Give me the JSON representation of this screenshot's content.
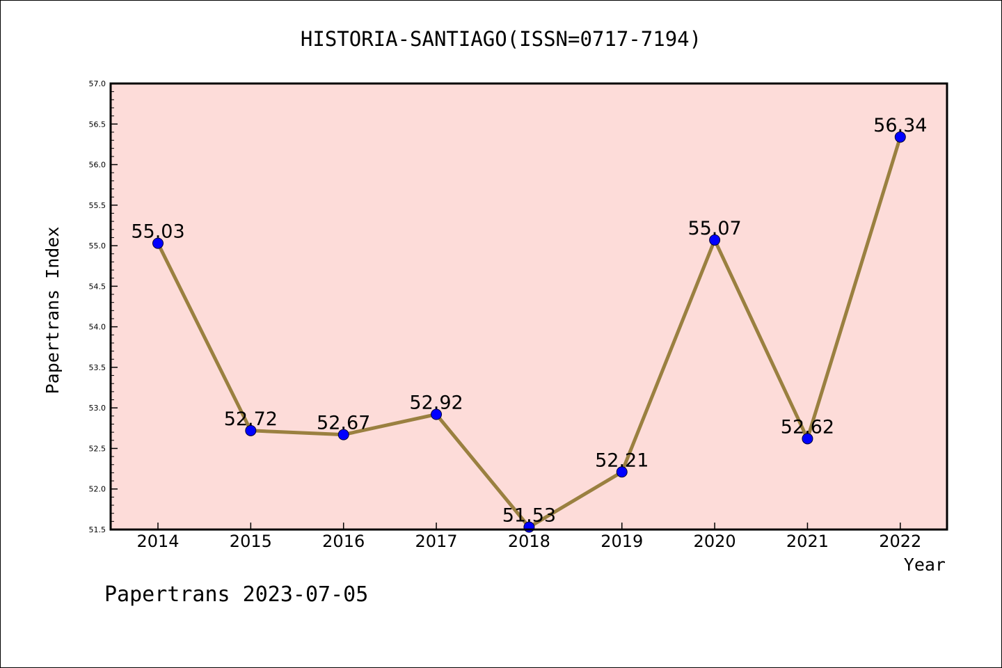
{
  "chart_data": {
    "type": "line",
    "title": "HISTORIA-SANTIAGO(ISSN=0717-7194)",
    "xlabel": "Year",
    "ylabel": "Papertrans Index",
    "footer": "Papertrans 2023-07-05",
    "x": [
      "2014",
      "2015",
      "2016",
      "2017",
      "2018",
      "2019",
      "2020",
      "2021",
      "2022"
    ],
    "values": [
      55.03,
      52.72,
      52.67,
      52.92,
      51.53,
      52.21,
      55.07,
      52.62,
      56.34
    ],
    "value_labels": [
      "55.03",
      "52.72",
      "52.67",
      "52.92",
      "51.53",
      "52.21",
      "55.07",
      "52.62",
      "56.34"
    ],
    "ylim": [
      51.5,
      57.0
    ],
    "yticks": [
      "51.5",
      "52.0",
      "52.5",
      "53.0",
      "53.5",
      "54.0",
      "54.5",
      "55.0",
      "55.5",
      "56.0",
      "56.5",
      "57.0"
    ],
    "grid": false,
    "legend": "none",
    "colors": {
      "plot_background": "#fddcd9",
      "line": "#9a8040",
      "marker": "#0000ff",
      "axis": "#000000"
    }
  }
}
